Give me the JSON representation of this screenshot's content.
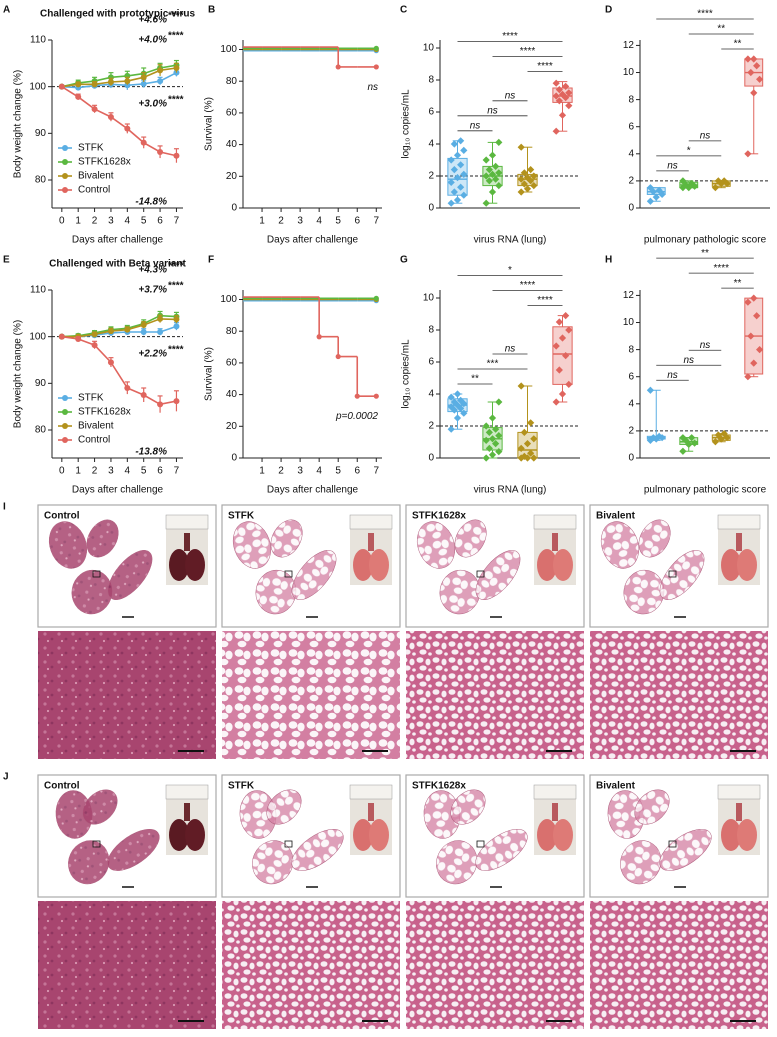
{
  "chart_data": [
    {
      "type": "line",
      "panel": "A",
      "title": "Challenged with prototypic virus",
      "xlabel": "Days after challenge",
      "ylabel": "Body weight change (%)",
      "x": [
        0,
        1,
        2,
        3,
        4,
        5,
        6,
        7
      ],
      "xlim": [
        -0.6,
        7.4
      ],
      "xticks": [
        0,
        1,
        2,
        3,
        4,
        5,
        6,
        7
      ],
      "ylim": [
        74,
        110
      ],
      "yticks": [
        80,
        90,
        100,
        110
      ],
      "reference_line": 100,
      "legend": "lower left",
      "series": [
        {
          "name": "STFK",
          "color": "#5aaee3",
          "values": [
            100,
            99.8,
            100.2,
            100.5,
            100.3,
            100.6,
            101.2,
            103.0
          ],
          "errors": [
            0,
            0.5,
            0.6,
            0.8,
            1,
            0.8,
            0.8,
            0.8
          ],
          "label": "+3.0%",
          "stars": "****"
        },
        {
          "name": "STFK1628x",
          "color": "#5bb840",
          "values": [
            100,
            100.8,
            101.2,
            102,
            102.3,
            102.8,
            104,
            104.6
          ],
          "errors": [
            0,
            0.6,
            0.8,
            1,
            1,
            1.2,
            1,
            1
          ],
          "label": "+4.6%",
          "stars": "****"
        },
        {
          "name": "Bivalent",
          "color": "#b3921c",
          "values": [
            100,
            100.5,
            100.5,
            101,
            101.2,
            102,
            103.5,
            104.0
          ],
          "errors": [
            0,
            0.5,
            0.6,
            0.8,
            0.8,
            1,
            1.2,
            1
          ],
          "label": "+4.0%",
          "stars": "****"
        },
        {
          "name": "Control",
          "color": "#e0655e",
          "values": [
            100,
            97.8,
            95.2,
            93.5,
            91,
            88,
            86,
            85.2
          ],
          "errors": [
            0,
            0.6,
            0.8,
            0.9,
            1,
            1.2,
            1.3,
            1.5
          ],
          "label": "-14.8%"
        }
      ]
    },
    {
      "type": "step",
      "panel": "B",
      "xlabel": "Days after challenge",
      "ylabel": "Survival (%)",
      "x": [
        0,
        1,
        2,
        3,
        4,
        5,
        6,
        7
      ],
      "xlim": [
        0,
        7.3
      ],
      "xticks": [
        1,
        2,
        3,
        4,
        5,
        6,
        7
      ],
      "ylim": [
        0,
        106
      ],
      "yticks": [
        0,
        20,
        40,
        60,
        80,
        100
      ],
      "annotation": "ns",
      "series": [
        {
          "color": "#5aaee3",
          "values": [
            100,
            100,
            100,
            100,
            100,
            100,
            100,
            100
          ]
        },
        {
          "color": "#b3921c",
          "values": [
            100,
            100,
            100,
            100,
            100,
            100,
            100,
            100
          ]
        },
        {
          "color": "#5bb840",
          "values": [
            100,
            100,
            100,
            100,
            100,
            100,
            100,
            100
          ]
        },
        {
          "color": "#e0655e",
          "values": [
            100,
            100,
            100,
            100,
            100,
            87.5,
            87.5,
            87.5
          ]
        }
      ]
    },
    {
      "type": "box",
      "panel": "C",
      "xlabel": "virus RNA (lung)",
      "ylabel": "log₁₀ copies/mL",
      "ylim": [
        0,
        10.5
      ],
      "yticks": [
        0,
        2,
        4,
        6,
        8,
        10
      ],
      "reference_line": 2,
      "groups": [
        {
          "color": "#5aaee3",
          "box": [
            0.3,
            0.8,
            1.8,
            3.1,
            4.2
          ],
          "points": [
            0.3,
            0.5,
            0.8,
            1.0,
            1.3,
            1.6,
            1.9,
            2.1,
            2.4,
            2.7,
            3.0,
            3.3,
            3.6,
            4.0,
            4.2
          ]
        },
        {
          "color": "#5bb840",
          "box": [
            0.3,
            1.4,
            2.0,
            2.6,
            4.1
          ],
          "points": [
            0.3,
            1.0,
            1.4,
            1.7,
            1.8,
            2.0,
            2.1,
            2.2,
            2.4,
            2.6,
            3.0,
            3.3,
            4.1
          ]
        },
        {
          "color": "#b3921c",
          "box": [
            1.0,
            1.4,
            1.8,
            2.1,
            3.8
          ],
          "points": [
            1.0,
            1.2,
            1.4,
            1.5,
            1.7,
            1.8,
            1.9,
            2.0,
            2.2,
            2.4,
            3.8
          ]
        },
        {
          "color": "#e0655e",
          "box": [
            4.8,
            6.6,
            7.0,
            7.5,
            7.9
          ],
          "points": [
            4.8,
            5.8,
            6.4,
            6.7,
            6.9,
            7.0,
            7.1,
            7.2,
            7.4,
            7.6,
            7.8
          ]
        }
      ],
      "comparisons": [
        {
          "from": 0,
          "to": 1,
          "label": "ns"
        },
        {
          "from": 0,
          "to": 2,
          "label": "ns"
        },
        {
          "from": 1,
          "to": 2,
          "label": "ns"
        },
        {
          "from": 2,
          "to": 3,
          "label": "****"
        },
        {
          "from": 1,
          "to": 3,
          "label": "****"
        },
        {
          "from": 0,
          "to": 3,
          "label": "****"
        }
      ]
    },
    {
      "type": "box",
      "panel": "D",
      "xlabel": "pulmonary pathologic score",
      "ylim": [
        0,
        12.4
      ],
      "yticks": [
        0,
        2,
        4,
        6,
        8,
        10,
        12
      ],
      "reference_line": 2,
      "groups": [
        {
          "color": "#5aaee3",
          "box": [
            0.5,
            1.0,
            1.2,
            1.5,
            1.5
          ],
          "points": [
            0.5,
            0.8,
            1.0,
            1.2,
            1.3,
            1.5
          ]
        },
        {
          "color": "#5bb840",
          "box": [
            1.5,
            1.5,
            1.7,
            1.9,
            2.0
          ],
          "points": [
            1.5,
            1.5,
            1.6,
            1.7,
            1.8,
            2.0
          ]
        },
        {
          "color": "#b3921c",
          "box": [
            1.5,
            1.6,
            1.8,
            2.0,
            2.0
          ],
          "points": [
            1.5,
            1.8,
            1.8,
            2.0,
            2.0
          ]
        },
        {
          "color": "#e0655e",
          "box": [
            4.0,
            9.0,
            10.0,
            11.0,
            11.0
          ],
          "points": [
            4.0,
            8.5,
            9.5,
            10.0,
            10.5,
            11.0,
            11.0
          ]
        }
      ],
      "comparisons": [
        {
          "from": 0,
          "to": 1,
          "label": "ns"
        },
        {
          "from": 0,
          "to": 2,
          "label": "*"
        },
        {
          "from": 1,
          "to": 2,
          "label": "ns"
        },
        {
          "from": 2,
          "to": 3,
          "label": "**"
        },
        {
          "from": 1,
          "to": 3,
          "label": "**"
        },
        {
          "from": 0,
          "to": 3,
          "label": "****"
        }
      ]
    },
    {
      "type": "line",
      "panel": "E",
      "title": "Challenged with Beta variant",
      "xlabel": "Days after challenge",
      "ylabel": "Body weight change (%)",
      "x": [
        0,
        1,
        2,
        3,
        4,
        5,
        6,
        7
      ],
      "xlim": [
        -0.6,
        7.4
      ],
      "xticks": [
        0,
        1,
        2,
        3,
        4,
        5,
        6,
        7
      ],
      "ylim": [
        74,
        110
      ],
      "yticks": [
        80,
        90,
        100,
        110
      ],
      "reference_line": 100,
      "legend": "lower left",
      "series": [
        {
          "name": "STFK",
          "color": "#5aaee3",
          "values": [
            100,
            100,
            100.3,
            100.8,
            101,
            101,
            101,
            102.2
          ],
          "errors": [
            0,
            0.4,
            0.5,
            0.6,
            0.6,
            0.7,
            0.7,
            0.8
          ],
          "label": "+2.2%",
          "stars": "****"
        },
        {
          "name": "STFK1628x",
          "color": "#5bb840",
          "values": [
            100,
            100.2,
            100.8,
            101.5,
            101.8,
            102.8,
            104.5,
            104.3
          ],
          "errors": [
            0,
            0.4,
            0.5,
            0.6,
            0.6,
            0.8,
            0.9,
            0.9
          ],
          "label": "+4.3%",
          "stars": "****"
        },
        {
          "name": "Bivalent",
          "color": "#b3921c",
          "values": [
            100,
            100,
            100.5,
            101.2,
            101.5,
            102.5,
            103.8,
            103.7
          ],
          "errors": [
            0,
            0.4,
            0.5,
            0.6,
            0.6,
            0.7,
            0.8,
            0.8
          ],
          "label": "+3.7%",
          "stars": "****"
        },
        {
          "name": "Control",
          "color": "#e0655e",
          "values": [
            100,
            99.5,
            98.2,
            94.5,
            89,
            87.5,
            85.5,
            86.2
          ],
          "errors": [
            0,
            0.5,
            0.8,
            1,
            1.3,
            1.5,
            1.8,
            2.2
          ],
          "label": "-13.8%"
        }
      ]
    },
    {
      "type": "step",
      "panel": "F",
      "xlabel": "Days after challenge",
      "ylabel": "Survival (%)",
      "x": [
        0,
        1,
        2,
        3,
        4,
        5,
        6,
        7
      ],
      "xlim": [
        0,
        7.3
      ],
      "xticks": [
        1,
        2,
        3,
        4,
        5,
        6,
        7
      ],
      "ylim": [
        0,
        106
      ],
      "yticks": [
        0,
        20,
        40,
        60,
        80,
        100
      ],
      "annotation": "p=0.0002",
      "series": [
        {
          "color": "#5aaee3",
          "values": [
            100,
            100,
            100,
            100,
            100,
            100,
            100,
            100
          ]
        },
        {
          "color": "#b3921c",
          "values": [
            100,
            100,
            100,
            100,
            100,
            100,
            100,
            100
          ]
        },
        {
          "color": "#5bb840",
          "values": [
            100,
            100,
            100,
            100,
            100,
            100,
            100,
            100
          ]
        },
        {
          "color": "#e0655e",
          "values": [
            100,
            100,
            100,
            100,
            75,
            62.5,
            37.5,
            37.5
          ]
        }
      ]
    },
    {
      "type": "box",
      "panel": "G",
      "xlabel": "virus RNA (lung)",
      "ylabel": "log₁₀ copies/mL",
      "ylim": [
        0,
        10.5
      ],
      "yticks": [
        0,
        2,
        4,
        6,
        8,
        10
      ],
      "reference_line": 2,
      "groups": [
        {
          "color": "#5aaee3",
          "box": [
            1.8,
            2.9,
            3.3,
            3.7,
            4.0
          ],
          "points": [
            1.8,
            2.5,
            2.8,
            3.0,
            3.1,
            3.2,
            3.3,
            3.4,
            3.5,
            3.6,
            3.8,
            4.0
          ]
        },
        {
          "color": "#5bb840",
          "box": [
            0.0,
            0.5,
            1.2,
            1.9,
            3.5
          ],
          "points": [
            0.0,
            0.2,
            0.4,
            0.6,
            0.9,
            1.1,
            1.2,
            1.4,
            1.6,
            1.8,
            2.0,
            2.5,
            3.5
          ]
        },
        {
          "color": "#b3921c",
          "box": [
            0.0,
            0.0,
            0.5,
            1.6,
            4.5
          ],
          "points": [
            0.0,
            0.0,
            0.0,
            0.1,
            0.3,
            0.6,
            0.9,
            1.2,
            1.6,
            2.2,
            4.5
          ]
        },
        {
          "color": "#e0655e",
          "box": [
            3.5,
            4.6,
            6.5,
            8.2,
            8.9
          ],
          "points": [
            3.5,
            4.0,
            4.6,
            5.5,
            6.4,
            7.0,
            7.5,
            8.0,
            8.5,
            8.9
          ]
        }
      ],
      "comparisons": [
        {
          "from": 0,
          "to": 1,
          "label": "**"
        },
        {
          "from": 0,
          "to": 2,
          "label": "***"
        },
        {
          "from": 1,
          "to": 2,
          "label": "ns"
        },
        {
          "from": 2,
          "to": 3,
          "label": "****"
        },
        {
          "from": 1,
          "to": 3,
          "label": "****"
        },
        {
          "from": 0,
          "to": 3,
          "label": "*"
        }
      ]
    },
    {
      "type": "box",
      "panel": "H",
      "xlabel": "pulmonary pathologic score",
      "ylim": [
        0,
        12.4
      ],
      "yticks": [
        0,
        2,
        4,
        6,
        8,
        10,
        12
      ],
      "reference_line": 2,
      "groups": [
        {
          "color": "#5aaee3",
          "box": [
            1.3,
            1.4,
            1.5,
            1.6,
            5.0
          ],
          "points": [
            1.3,
            1.4,
            1.5,
            1.5,
            1.6,
            5.0
          ]
        },
        {
          "color": "#5bb840",
          "box": [
            0.5,
            1.0,
            1.2,
            1.5,
            1.5
          ],
          "points": [
            0.5,
            1.0,
            1.1,
            1.3,
            1.5,
            1.5
          ]
        },
        {
          "color": "#b3921c",
          "box": [
            1.2,
            1.3,
            1.5,
            1.7,
            1.8
          ],
          "points": [
            1.2,
            1.4,
            1.5,
            1.7,
            1.8
          ]
        },
        {
          "color": "#e0655e",
          "box": [
            6.0,
            6.2,
            9.0,
            11.8,
            11.8
          ],
          "points": [
            6.0,
            7.0,
            8.0,
            9.0,
            10.5,
            11.5,
            11.8
          ]
        }
      ],
      "comparisons": [
        {
          "from": 0,
          "to": 1,
          "label": "ns"
        },
        {
          "from": 0,
          "to": 2,
          "label": "ns"
        },
        {
          "from": 1,
          "to": 2,
          "label": "ns"
        },
        {
          "from": 2,
          "to": 3,
          "label": "**"
        },
        {
          "from": 1,
          "to": 3,
          "label": "****"
        },
        {
          "from": 0,
          "to": 3,
          "label": "**"
        }
      ]
    }
  ],
  "histology": [
    {
      "panel": "I",
      "groups": [
        {
          "label": "Control",
          "color": "#e0655e"
        },
        {
          "label": "STFK",
          "color": "#5aaee3"
        },
        {
          "label": "STFK1628x",
          "color": "#5bb840"
        },
        {
          "label": "Bivalent",
          "color": "#b3921c"
        }
      ]
    },
    {
      "panel": "J",
      "groups": [
        {
          "label": "Control",
          "color": "#e0655e"
        },
        {
          "label": "STFK",
          "color": "#5aaee3"
        },
        {
          "label": "STFK1628x",
          "color": "#5bb840"
        },
        {
          "label": "Bivalent",
          "color": "#b3921c"
        }
      ]
    }
  ]
}
